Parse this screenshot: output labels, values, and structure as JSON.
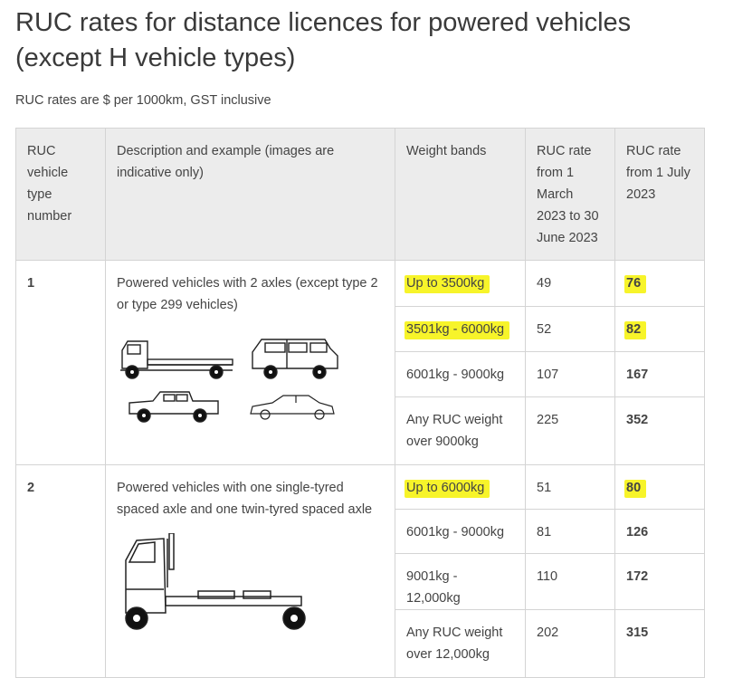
{
  "page": {
    "title": "RUC rates for distance licences for powered vehicles (except H vehicle types)",
    "subtitle": "RUC rates are $ per 1000km, GST inclusive"
  },
  "table": {
    "headers": [
      "RUC vehicle type number",
      "Description and example (images are indicative only)",
      "Weight bands",
      "RUC rate from 1 March 2023 to 30 June 2023",
      "RUC rate from 1 July 2023"
    ],
    "groups": [
      {
        "type_number": "1",
        "description": "Powered vehicles with 2 axles (except type 2 or type 299 vehicles)",
        "image_icons": [
          "flatbed-truck-icon",
          "van-icon",
          "pickup-truck-icon",
          "sedan-car-icon"
        ],
        "rows": [
          {
            "band": "Up to 3500kg",
            "rate_old": "49",
            "rate_new": "76",
            "highlight": true
          },
          {
            "band": "3501kg - 6000kg",
            "rate_old": "52",
            "rate_new": "82",
            "highlight": true
          },
          {
            "band": "6001kg - 9000kg",
            "rate_old": "107",
            "rate_new": "167",
            "highlight": false
          },
          {
            "band": "Any RUC weight over 9000kg",
            "rate_old": "225",
            "rate_new": "352",
            "highlight": false
          }
        ]
      },
      {
        "type_number": "2",
        "description": "Powered vehicles with one single-tyred spaced axle and one twin-tyred spaced axle",
        "image_icons": [
          "cab-chassis-truck-icon"
        ],
        "rows": [
          {
            "band": "Up to 6000kg",
            "rate_old": "51",
            "rate_new": "80",
            "highlight": true
          },
          {
            "band": "6001kg - 9000kg",
            "rate_old": "81",
            "rate_new": "126",
            "highlight": false
          },
          {
            "band": "9001kg - 12,000kg",
            "rate_old": "110",
            "rate_new": "172",
            "highlight": false
          },
          {
            "band": "Any RUC weight over 12,000kg",
            "rate_old": "202",
            "rate_new": "315",
            "highlight": false
          }
        ]
      }
    ],
    "highlight_color": "#f7f42a",
    "header_bg": "#ececec"
  }
}
